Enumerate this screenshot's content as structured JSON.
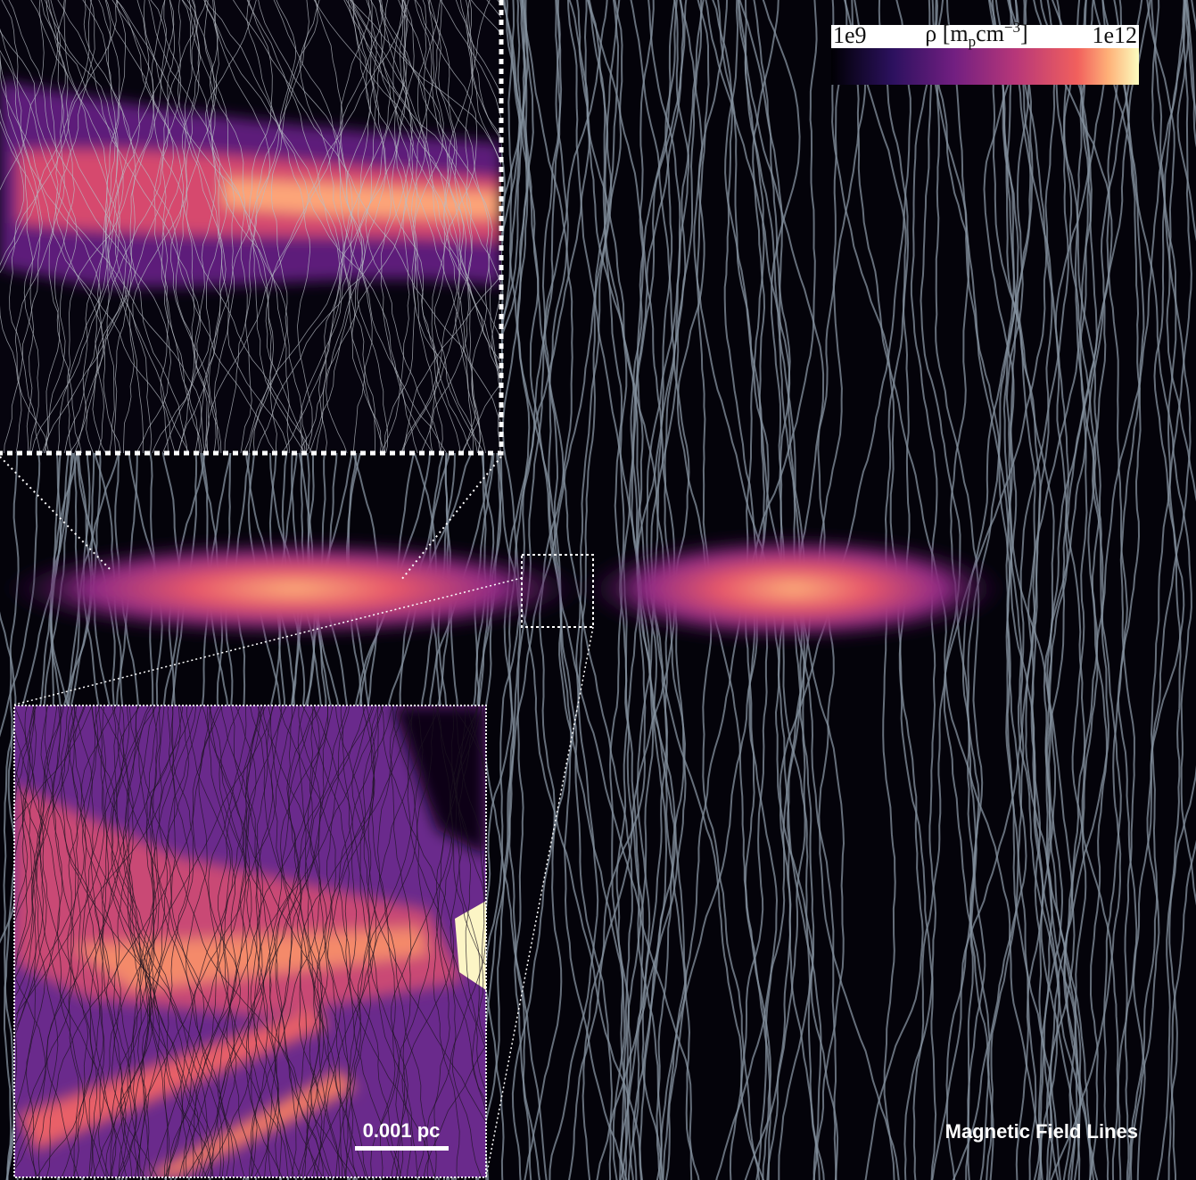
{
  "colorbar": {
    "min_label": "1e9",
    "label_parts": [
      "ρ [m",
      "p",
      "cm",
      "−3",
      "]"
    ],
    "max_label": "1e12"
  },
  "scale_bar": {
    "label": "0.001 pc"
  },
  "caption": "Magnetic Field Lines"
}
